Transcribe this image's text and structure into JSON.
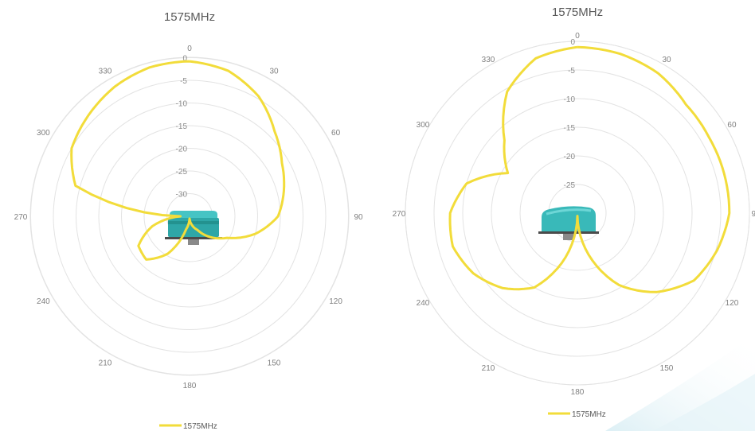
{
  "colors": {
    "series": "#f2dc3a",
    "grid": "#e3e3e3",
    "antenna": "#33b4b4"
  },
  "chart_data": [
    {
      "type": "polar-line",
      "title": "1575MHz",
      "theta_ticks": [
        "0",
        "30",
        "60",
        "90",
        "120",
        "150",
        "180",
        "210",
        "240",
        "270",
        "300",
        "330"
      ],
      "r_ticks": [
        "-30",
        "-25",
        "-20",
        "-15",
        "-10",
        "-5",
        "0"
      ],
      "r_range": [
        -35,
        0
      ],
      "grid": true,
      "legend_position": "bottom",
      "legend_label": "1575MHz",
      "series": [
        {
          "name": "1575MHz",
          "theta_deg": [
            0,
            15,
            30,
            45,
            60,
            75,
            90,
            105,
            120,
            135,
            150,
            165,
            180,
            195,
            210,
            225,
            240,
            255,
            270,
            285,
            300,
            315,
            330,
            345,
            360
          ],
          "gain_db": [
            -0.8,
            -1.8,
            -4.5,
            -8.5,
            -11.5,
            -13.5,
            -15.5,
            -20,
            -25.5,
            -28.5,
            -31.5,
            -33,
            -34.5,
            -32,
            -25.5,
            -21.5,
            -22,
            -26.5,
            -33,
            -9,
            -5,
            -3.5,
            -2,
            -1,
            -0.8
          ]
        }
      ]
    },
    {
      "type": "polar-line",
      "title": "1575MHz",
      "theta_ticks": [
        "0",
        "30",
        "60",
        "90",
        "120",
        "150",
        "180",
        "210",
        "240",
        "270",
        "300",
        "330"
      ],
      "r_ticks": [
        "-25",
        "-20",
        "-15",
        "-10",
        "-5",
        "0"
      ],
      "r_range": [
        -30,
        0
      ],
      "grid": true,
      "legend_position": "bottom",
      "legend_label": "1575MHz",
      "series": [
        {
          "name": "1575MHz",
          "theta_deg": [
            0,
            15,
            30,
            45,
            60,
            75,
            90,
            105,
            120,
            135,
            150,
            165,
            180,
            195,
            210,
            225,
            240,
            255,
            270,
            285,
            300,
            315,
            330,
            345,
            360
          ],
          "gain_db": [
            -1,
            -1.2,
            -1.8,
            -3.2,
            -3.5,
            -3.5,
            -3.5,
            -4.8,
            -6.5,
            -10.5,
            -15.5,
            -22.5,
            -29.5,
            -22,
            -15,
            -11.5,
            -9,
            -7.5,
            -7.8,
            -10,
            -16,
            -12,
            -5.5,
            -2,
            -1
          ]
        }
      ]
    }
  ]
}
